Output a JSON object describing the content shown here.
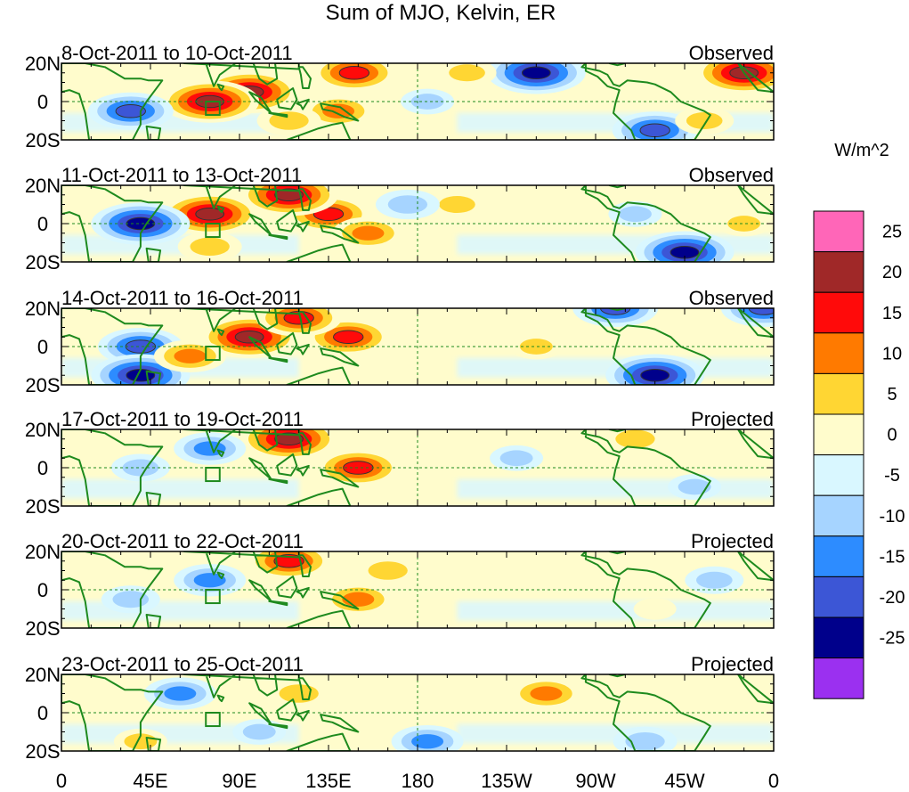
{
  "chart_data": {
    "type": "heatmap",
    "title": "Sum of MJO, Kelvin, ER",
    "colorbar": {
      "unit": "W/m^2",
      "tick_labels": [
        "25",
        "20",
        "15",
        "10",
        "5",
        "0",
        "-5",
        "-10",
        "-15",
        "-20",
        "-25"
      ],
      "colors": [
        "#ff66b8",
        "#a02828",
        "#ff0a0a",
        "#ff7a00",
        "#ffd633",
        "#fffccc",
        "#d9f7ff",
        "#a6d4ff",
        "#2d8cff",
        "#3c56d6",
        "#00008b",
        "#9b30f0"
      ]
    },
    "xaxis": {
      "tick_labels": [
        "0",
        "45E",
        "90E",
        "135E",
        "180",
        "135W",
        "90W",
        "45W",
        "0"
      ],
      "range_deg_east": [
        0,
        360
      ]
    },
    "yaxis": {
      "tick_labels": [
        "20N",
        "0",
        "20S"
      ],
      "range_deg": [
        -20,
        20
      ]
    },
    "panels": [
      {
        "date_range": "8-Oct-2011 to 10-Oct-2011",
        "status": "Observed",
        "anomalies": [
          {
            "lon": 95,
            "lat": 5,
            "value": 25
          },
          {
            "lon": 75,
            "lat": 0,
            "value": 25
          },
          {
            "lon": 140,
            "lat": -5,
            "value": 15
          },
          {
            "lon": 240,
            "lat": 15,
            "value": -25
          },
          {
            "lon": 148,
            "lat": 15,
            "value": 20
          },
          {
            "lon": 205,
            "lat": 15,
            "value": 10
          },
          {
            "lon": 35,
            "lat": -5,
            "value": -20
          },
          {
            "lon": 300,
            "lat": -15,
            "value": -20
          },
          {
            "lon": 345,
            "lat": 15,
            "value": 25
          },
          {
            "lon": 115,
            "lat": -10,
            "value": 12
          },
          {
            "lon": 325,
            "lat": -10,
            "value": 10
          },
          {
            "lon": 185,
            "lat": 0,
            "value": -8
          }
        ]
      },
      {
        "date_range": "11-Oct-2011 to 13-Oct-2011",
        "status": "Observed",
        "anomalies": [
          {
            "lon": 75,
            "lat": 5,
            "value": 25
          },
          {
            "lon": 135,
            "lat": 5,
            "value": 20
          },
          {
            "lon": 155,
            "lat": -5,
            "value": 15
          },
          {
            "lon": 40,
            "lat": 0,
            "value": -25
          },
          {
            "lon": 315,
            "lat": -15,
            "value": -25
          },
          {
            "lon": 115,
            "lat": 15,
            "value": 25
          },
          {
            "lon": 200,
            "lat": 10,
            "value": 10
          },
          {
            "lon": 175,
            "lat": 10,
            "value": -12
          },
          {
            "lon": 75,
            "lat": -12,
            "value": 12
          },
          {
            "lon": 345,
            "lat": 0,
            "value": 8
          },
          {
            "lon": 290,
            "lat": 5,
            "value": -8
          }
        ]
      },
      {
        "date_range": "14-Oct-2011 to 16-Oct-2011",
        "status": "Observed",
        "anomalies": [
          {
            "lon": 95,
            "lat": 5,
            "value": 25
          },
          {
            "lon": 145,
            "lat": 5,
            "value": 20
          },
          {
            "lon": 120,
            "lat": 15,
            "value": 20
          },
          {
            "lon": 40,
            "lat": 0,
            "value": -20
          },
          {
            "lon": 40,
            "lat": -15,
            "value": -25
          },
          {
            "lon": 300,
            "lat": -15,
            "value": -25
          },
          {
            "lon": 65,
            "lat": -5,
            "value": 15
          },
          {
            "lon": 280,
            "lat": 20,
            "value": -20
          },
          {
            "lon": 355,
            "lat": 20,
            "value": -20
          },
          {
            "lon": 240,
            "lat": 0,
            "value": 8
          },
          {
            "lon": 195,
            "lat": 5,
            "value": 5
          }
        ]
      },
      {
        "date_range": "17-Oct-2011 to 19-Oct-2011",
        "status": "Projected",
        "anomalies": [
          {
            "lon": 150,
            "lat": 0,
            "value": 20
          },
          {
            "lon": 115,
            "lat": 15,
            "value": 25
          },
          {
            "lon": 75,
            "lat": 10,
            "value": -15
          },
          {
            "lon": 290,
            "lat": 15,
            "value": 12
          },
          {
            "lon": 40,
            "lat": 0,
            "value": -10
          },
          {
            "lon": 230,
            "lat": 5,
            "value": -8
          },
          {
            "lon": 320,
            "lat": -10,
            "value": -8
          },
          {
            "lon": 200,
            "lat": 5,
            "value": 4
          }
        ]
      },
      {
        "date_range": "20-Oct-2011 to 22-Oct-2011",
        "status": "Projected",
        "anomalies": [
          {
            "lon": 115,
            "lat": 15,
            "value": 20
          },
          {
            "lon": 150,
            "lat": -5,
            "value": 15
          },
          {
            "lon": 75,
            "lat": 5,
            "value": -15
          },
          {
            "lon": 165,
            "lat": 10,
            "value": 12
          },
          {
            "lon": 35,
            "lat": -5,
            "value": -10
          },
          {
            "lon": 330,
            "lat": 5,
            "value": -10
          },
          {
            "lon": 215,
            "lat": 5,
            "value": 5
          },
          {
            "lon": 300,
            "lat": -10,
            "value": 4
          }
        ]
      },
      {
        "date_range": "23-Oct-2011 to 25-Oct-2011",
        "status": "Projected",
        "anomalies": [
          {
            "lon": 245,
            "lat": 10,
            "value": 15
          },
          {
            "lon": 120,
            "lat": 10,
            "value": 12
          },
          {
            "lon": 60,
            "lat": 10,
            "value": -15
          },
          {
            "lon": 185,
            "lat": -15,
            "value": -15
          },
          {
            "lon": 295,
            "lat": -15,
            "value": -12
          },
          {
            "lon": 100,
            "lat": -10,
            "value": -8
          },
          {
            "lon": 40,
            "lat": -15,
            "value": 8
          },
          {
            "lon": 180,
            "lat": 10,
            "value": 4
          }
        ]
      }
    ]
  }
}
